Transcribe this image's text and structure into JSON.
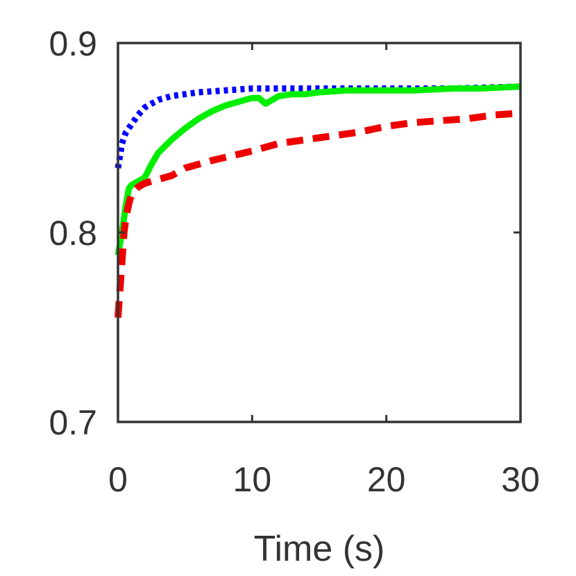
{
  "chart_data": {
    "type": "line",
    "title": "",
    "xlabel": "Time (s)",
    "ylabel": "",
    "xlim": [
      0,
      30
    ],
    "ylim": [
      0.7,
      0.9
    ],
    "xticks": [
      0,
      10,
      20,
      30
    ],
    "xtick_labels": [
      "0",
      "10",
      "20",
      "30"
    ],
    "yticks": [
      0.7,
      0.8,
      0.9
    ],
    "ytick_labels": [
      "0.7",
      "0.8",
      "0.9"
    ],
    "grid": false,
    "series": [
      {
        "name": "dotted-blue",
        "color": "#0000ff",
        "dash": "dotted",
        "x": [
          0,
          0.3,
          0.6,
          1,
          1.5,
          2,
          2.5,
          3,
          4,
          5,
          6,
          8,
          10,
          11,
          12,
          13,
          15,
          20,
          25,
          30
        ],
        "y": [
          0.834,
          0.847,
          0.853,
          0.857,
          0.862,
          0.866,
          0.868,
          0.87,
          0.872,
          0.873,
          0.874,
          0.875,
          0.876,
          0.876,
          0.876,
          0.876,
          0.876,
          0.876,
          0.876,
          0.877
        ]
      },
      {
        "name": "solid-green",
        "color": "#00ee00",
        "dash": "solid",
        "x": [
          0,
          0.2,
          0.4,
          0.6,
          0.8,
          1,
          1.5,
          2,
          2.5,
          3,
          4,
          5,
          6,
          7,
          8,
          9,
          10,
          10.5,
          11,
          11.5,
          12,
          13,
          14,
          15,
          17,
          20,
          22,
          25,
          27,
          30
        ],
        "y": [
          0.788,
          0.796,
          0.805,
          0.815,
          0.823,
          0.825,
          0.827,
          0.829,
          0.836,
          0.842,
          0.849,
          0.855,
          0.86,
          0.864,
          0.867,
          0.869,
          0.871,
          0.871,
          0.868,
          0.87,
          0.872,
          0.873,
          0.873,
          0.874,
          0.875,
          0.875,
          0.875,
          0.876,
          0.876,
          0.877
        ]
      },
      {
        "name": "dashed-red",
        "color": "#ee0000",
        "dash": "dashed",
        "x": [
          0,
          0.15,
          0.3,
          0.45,
          0.6,
          0.8,
          1,
          1.5,
          2,
          3,
          4,
          5,
          7,
          10,
          12,
          15,
          18,
          20,
          22,
          24,
          26,
          28,
          30
        ],
        "y": [
          0.755,
          0.77,
          0.785,
          0.8,
          0.808,
          0.815,
          0.82,
          0.824,
          0.826,
          0.828,
          0.83,
          0.834,
          0.838,
          0.843,
          0.847,
          0.85,
          0.853,
          0.856,
          0.858,
          0.859,
          0.86,
          0.862,
          0.863
        ]
      }
    ]
  }
}
